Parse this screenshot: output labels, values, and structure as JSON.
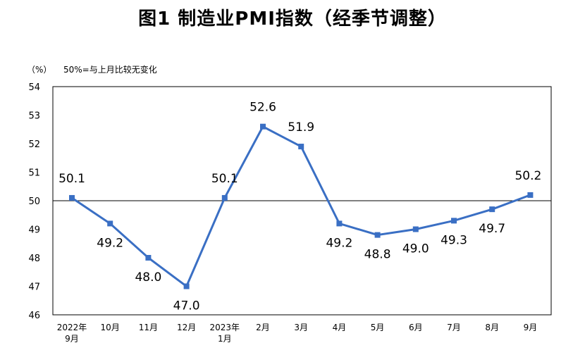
{
  "chart_data": {
    "type": "line",
    "title": "图1 制造业PMI指数（经季节调整）",
    "y_unit": "（%）",
    "note": "50%=与上月比较无变化",
    "categories": [
      [
        "2022年",
        "9月"
      ],
      [
        "10月"
      ],
      [
        "11月"
      ],
      [
        "12月"
      ],
      [
        "2023年",
        "1月"
      ],
      [
        "2月"
      ],
      [
        "3月"
      ],
      [
        "4月"
      ],
      [
        "5月"
      ],
      [
        "6月"
      ],
      [
        "7月"
      ],
      [
        "8月"
      ],
      [
        "9月"
      ]
    ],
    "values": [
      50.1,
      49.2,
      48.0,
      47.0,
      50.1,
      52.6,
      51.9,
      49.2,
      48.8,
      49.0,
      49.3,
      49.7,
      50.2
    ],
    "data_labels": [
      "50.1",
      "49.2",
      "48.0",
      "47.0",
      "50.1",
      "52.6",
      "51.9",
      "49.2",
      "48.8",
      "49.0",
      "49.3",
      "49.7",
      "50.2"
    ],
    "label_positions": [
      "above",
      "below",
      "below",
      "below",
      "above",
      "above",
      "above",
      "below",
      "below",
      "below",
      "below",
      "below",
      "above"
    ],
    "yticks": [
      "46",
      "47",
      "48",
      "49",
      "50",
      "51",
      "52",
      "53",
      "54"
    ],
    "ylim": [
      46,
      54
    ],
    "reference_line": 50,
    "grid": false,
    "colors": {
      "line": "#3a6fc4",
      "reference": "#000000",
      "frame": "#000000"
    }
  }
}
